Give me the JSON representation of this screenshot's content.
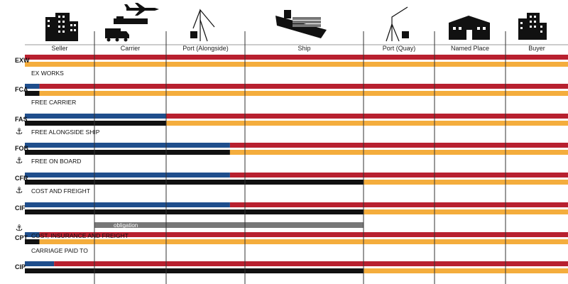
{
  "colors": {
    "background": "#ddebf6",
    "seller_cost": "#1f4e8c",
    "buyer_cost": "#b8202f",
    "seller_risk": "#111111",
    "buyer_risk": "#f4ad3d",
    "obligation": "#777777"
  },
  "columns": [
    {
      "label": "Seller",
      "icon": "seller-building-icon"
    },
    {
      "label": "Carrier",
      "icon": "carrier-plane-truck-icon"
    },
    {
      "label": "Port (Alongside)",
      "icon": "port-crane-icon"
    },
    {
      "label": "Ship",
      "icon": "container-ship-icon"
    },
    {
      "label": "Port (Quay)",
      "icon": "port-crane-icon"
    },
    {
      "label": "Named Place",
      "icon": "warehouse-icon"
    },
    {
      "label": "Buyer",
      "icon": "buyer-building-icon"
    }
  ],
  "terms": [
    {
      "code": "EXW",
      "name": "EX WORKS",
      "cost_split": 0,
      "risk_split": 0,
      "maritime": false
    },
    {
      "code": "FCA",
      "name": "FREE CARRIER",
      "cost_split": 0.21,
      "risk_split": 0.21,
      "maritime": false
    },
    {
      "code": "FAS",
      "name": "FREE ALONGSIDE SHIP",
      "cost_split": 2,
      "risk_split": 2,
      "maritime": true
    },
    {
      "code": "FOB",
      "name": "FREE ON BOARD",
      "cost_split": 2.81,
      "risk_split": 2.81,
      "maritime": true
    },
    {
      "code": "CFR",
      "name": "COST AND FREIGHT",
      "cost_split": 2.81,
      "risk_split": 4,
      "maritime": true
    },
    {
      "code": "CIF",
      "name": "COST, INSURANCE AND FREIGHT",
      "cost_split": 2.81,
      "risk_split": 4,
      "maritime": true,
      "note": "obligation"
    },
    {
      "code": "CPT",
      "name": "CARRIAGE PAID TO",
      "cost_split": 0.21,
      "risk_split": 0.21,
      "maritime": false
    },
    {
      "code": "CIP",
      "name": "",
      "cost_split": 0.42,
      "risk_split": 4,
      "maritime": false
    }
  ]
}
